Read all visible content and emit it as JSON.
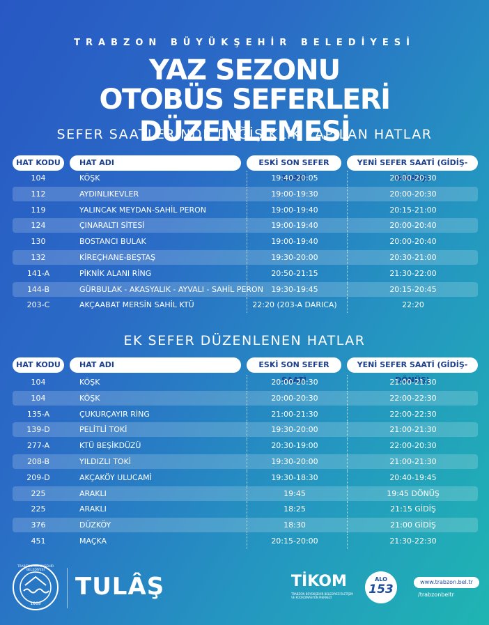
{
  "header": {
    "org": "TRABZON BÜYÜKŞEHİR BELEDİYESİ",
    "title_line1": "YAZ SEZONU",
    "title_line2": "OTOBÜS SEFERLERİ DÜZENLEMESİ"
  },
  "sections": [
    {
      "title": "SEFER SAATLERİNDE DEĞİŞİKLİK YAPILAN HATLAR",
      "headers": [
        "HAT KODU",
        "HAT ADI",
        "ESKİ SON SEFER SAATİ",
        "YENİ SEFER SAATİ (GİDİŞ-DÖNÜŞ)"
      ],
      "rows": [
        [
          "104",
          "KÖŞK",
          "19:40-20:05",
          "20:00-20:30"
        ],
        [
          "112",
          "AYDINLIKEVLER",
          "19:00-19:30",
          "20:00-20:30"
        ],
        [
          "119",
          "YALINCAK MEYDAN-SAHİL PERON",
          "19:00-19:40",
          "20:15-21:00"
        ],
        [
          "124",
          "ÇINARALTI SİTESİ",
          "19:00-19:40",
          "20:00-20:40"
        ],
        [
          "130",
          "BOSTANCI BULAK",
          "19:00-19:40",
          "20:00-20:40"
        ],
        [
          "132",
          "KİREÇHANE-BEŞTAŞ",
          "19:30-20:00",
          "20:30-21:00"
        ],
        [
          "141-A",
          "PİKNİK ALANI RİNG",
          "20:50-21:15",
          "21:30-22:00"
        ],
        [
          "144-B",
          "GÜRBULAK - AKASYALIK - AYVALI - SAHİL PERON",
          "19:30-19:45",
          "20:15-20:45"
        ],
        [
          "203-C",
          "AKÇAABAT MERSİN SAHİL KTÜ",
          "22:20 (203-A DARICA)",
          "22:20"
        ]
      ]
    },
    {
      "title": "EK SEFER DÜZENLENEN HATLAR",
      "headers": [
        "HAT KODU",
        "HAT ADI",
        "ESKİ SON SEFER SAATİ",
        "YENİ SEFER SAATİ (GİDİŞ-DÖNÜŞ)"
      ],
      "rows": [
        [
          "104",
          "KÖŞK",
          "20:00-20:30",
          "21:00-21:30"
        ],
        [
          "104",
          "KÖŞK",
          "20:00-20:30",
          "22:00-22:30"
        ],
        [
          "135-A",
          "ÇUKURÇAYIR RİNG",
          "21:00-21:30",
          "22:00-22:30"
        ],
        [
          "139-D",
          "PELİTLİ TOKİ",
          "19:30-20:00",
          "21:00-21:30"
        ],
        [
          "277-A",
          "KTÜ BEŞİKDÜZÜ",
          "20:30-19:00",
          "22:00-20:30"
        ],
        [
          "208-B",
          "YILDIZLI TOKİ",
          "19:30-20:00",
          "21:00-21:30"
        ],
        [
          "209-D",
          "AKÇAKÖY ULUCAMİ",
          "19:30-18:30",
          "20:40-19:45"
        ],
        [
          "225",
          "ARAKLI",
          "19:45",
          "19:45 DÖNÜŞ"
        ],
        [
          "225",
          "ARAKLI",
          "18:25",
          "21:15 GİDİŞ"
        ],
        [
          "376",
          "DÜZKÖY",
          "18:30",
          "21:00 GİDİŞ"
        ],
        [
          "451",
          "MAÇKA",
          "20:15-20:00",
          "21:30-22:30"
        ]
      ]
    }
  ],
  "footer": {
    "seal_text": "TRABZON BÜYÜKŞEHİR BELEDİYESİ",
    "seal_year": "1869",
    "brand": "TULÂŞ",
    "tikom": "TİKOM",
    "tikom_sub": "TRABZON BÜYÜKŞEHİR BELEDİYESİ İLETİŞİM VE KOORDİNASYON MERKEZİ",
    "alo": "ALO",
    "alo_number": "153",
    "website": "www.trabzon.bel.tr",
    "social": "/trabzonbeltr"
  }
}
